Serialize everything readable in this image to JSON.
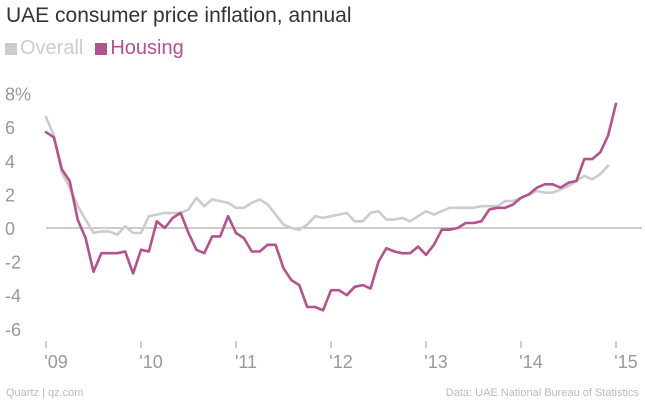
{
  "chart_data": {
    "type": "line",
    "title": "UAE consumer price inflation, annual",
    "xlabel": "",
    "ylabel": "",
    "ylim": [
      -7,
      9
    ],
    "y_ticks": [
      8,
      6,
      4,
      2,
      0,
      -2,
      -4,
      -6
    ],
    "y_tick_labels": [
      "8%",
      "6",
      "4",
      "2",
      "0",
      "-2",
      "-4",
      "-6"
    ],
    "x_range": [
      2009.0,
      2015.0
    ],
    "x_ticks": [
      2009,
      2010,
      2011,
      2012,
      2013,
      2014,
      2015
    ],
    "x_tick_labels": [
      "'09",
      "'10",
      "'11",
      "'12",
      "'13",
      "'14",
      "'15"
    ],
    "colors": {
      "overall": "#cccccc",
      "housing": "#b5518e",
      "zero_line": "#999999"
    },
    "series": [
      {
        "name": "Overall",
        "color": "#cccccc",
        "x_start": 2009.0,
        "x_step": 0.0833333,
        "values": [
          6.6,
          5.5,
          3.3,
          2.4,
          1.3,
          0.5,
          -0.3,
          -0.2,
          -0.2,
          -0.4,
          0.1,
          -0.3,
          -0.3,
          0.7,
          0.8,
          0.9,
          0.9,
          0.9,
          1.1,
          1.8,
          1.3,
          1.7,
          1.6,
          1.5,
          1.2,
          1.2,
          1.5,
          1.7,
          1.4,
          0.8,
          0.2,
          0.0,
          -0.1,
          0.2,
          0.7,
          0.6,
          0.7,
          0.8,
          0.9,
          0.4,
          0.4,
          0.9,
          1.0,
          0.5,
          0.5,
          0.6,
          0.4,
          0.7,
          1.0,
          0.8,
          1.0,
          1.2,
          1.2,
          1.2,
          1.2,
          1.3,
          1.3,
          1.3,
          1.6,
          1.6,
          1.8,
          2.0,
          2.2,
          2.1,
          2.1,
          2.3,
          2.5,
          2.8,
          3.1,
          2.9,
          3.2,
          3.7
        ]
      },
      {
        "name": "Housing",
        "color": "#b5518e",
        "x_start": 2009.0,
        "x_step": 0.0833333,
        "values": [
          5.7,
          5.4,
          3.5,
          2.8,
          0.5,
          -0.6,
          -2.6,
          -1.5,
          -1.5,
          -1.5,
          -1.4,
          -2.7,
          -1.3,
          -1.4,
          0.4,
          0.0,
          0.6,
          0.9,
          -0.3,
          -1.3,
          -1.5,
          -0.5,
          -0.5,
          0.7,
          -0.3,
          -0.6,
          -1.4,
          -1.4,
          -1.0,
          -1.0,
          -2.4,
          -3.1,
          -3.4,
          -4.7,
          -4.7,
          -4.9,
          -3.7,
          -3.7,
          -4.0,
          -3.5,
          -3.4,
          -3.6,
          -2.0,
          -1.2,
          -1.4,
          -1.5,
          -1.5,
          -1.1,
          -1.6,
          -1.0,
          -0.1,
          -0.1,
          0.0,
          0.3,
          0.3,
          0.4,
          1.1,
          1.2,
          1.2,
          1.4,
          1.8,
          2.0,
          2.4,
          2.6,
          2.6,
          2.4,
          2.7,
          2.8,
          4.1,
          4.1,
          4.5,
          5.5,
          7.4
        ]
      }
    ]
  },
  "footer": {
    "source_left": "Quartz | qz.com",
    "source_right": "Data: UAE National Bureau of Statistics"
  }
}
